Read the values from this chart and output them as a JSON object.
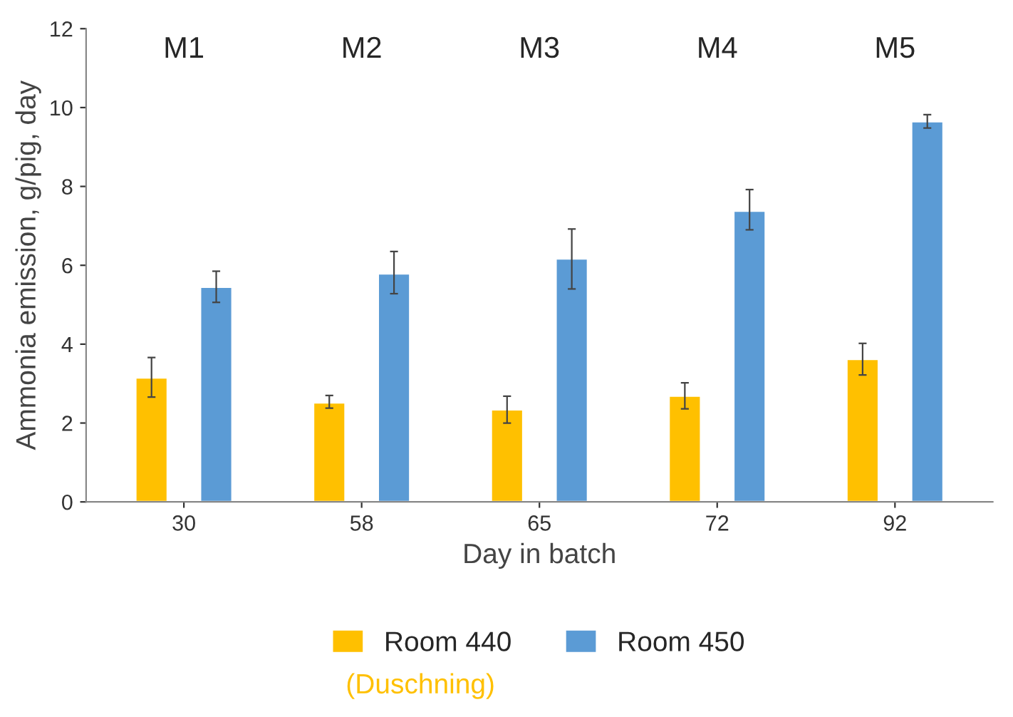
{
  "chart_data": {
    "type": "bar",
    "xlabel": "Day in batch",
    "ylabel": "Ammonia emission, g/pig, day",
    "categories": [
      "30",
      "58",
      "65",
      "72",
      "92"
    ],
    "series": [
      {
        "name": "Room 440",
        "color": "#ffc000",
        "values": [
          3.15,
          2.52,
          2.34,
          2.69,
          3.62
        ],
        "errors": [
          [
            2.66,
            3.66
          ],
          [
            2.38,
            2.7
          ],
          [
            2.0,
            2.68
          ],
          [
            2.36,
            3.02
          ],
          [
            3.22,
            4.02
          ]
        ]
      },
      {
        "name": "Room 450",
        "color": "#5b9bd5",
        "values": [
          5.45,
          5.79,
          6.17,
          7.38,
          9.65
        ],
        "errors": [
          [
            5.06,
            5.85
          ],
          [
            5.28,
            6.35
          ],
          [
            5.4,
            6.92
          ],
          [
            6.9,
            7.92
          ],
          [
            9.48,
            9.82
          ]
        ]
      }
    ],
    "ylim": [
      0,
      12
    ],
    "yticks": [
      0,
      2,
      4,
      6,
      8,
      10,
      12
    ],
    "grid": false,
    "legend": "bottom",
    "annotations": [
      "M1",
      "M2",
      "M3",
      "M4",
      "M5",
      "(Duschning)"
    ]
  }
}
